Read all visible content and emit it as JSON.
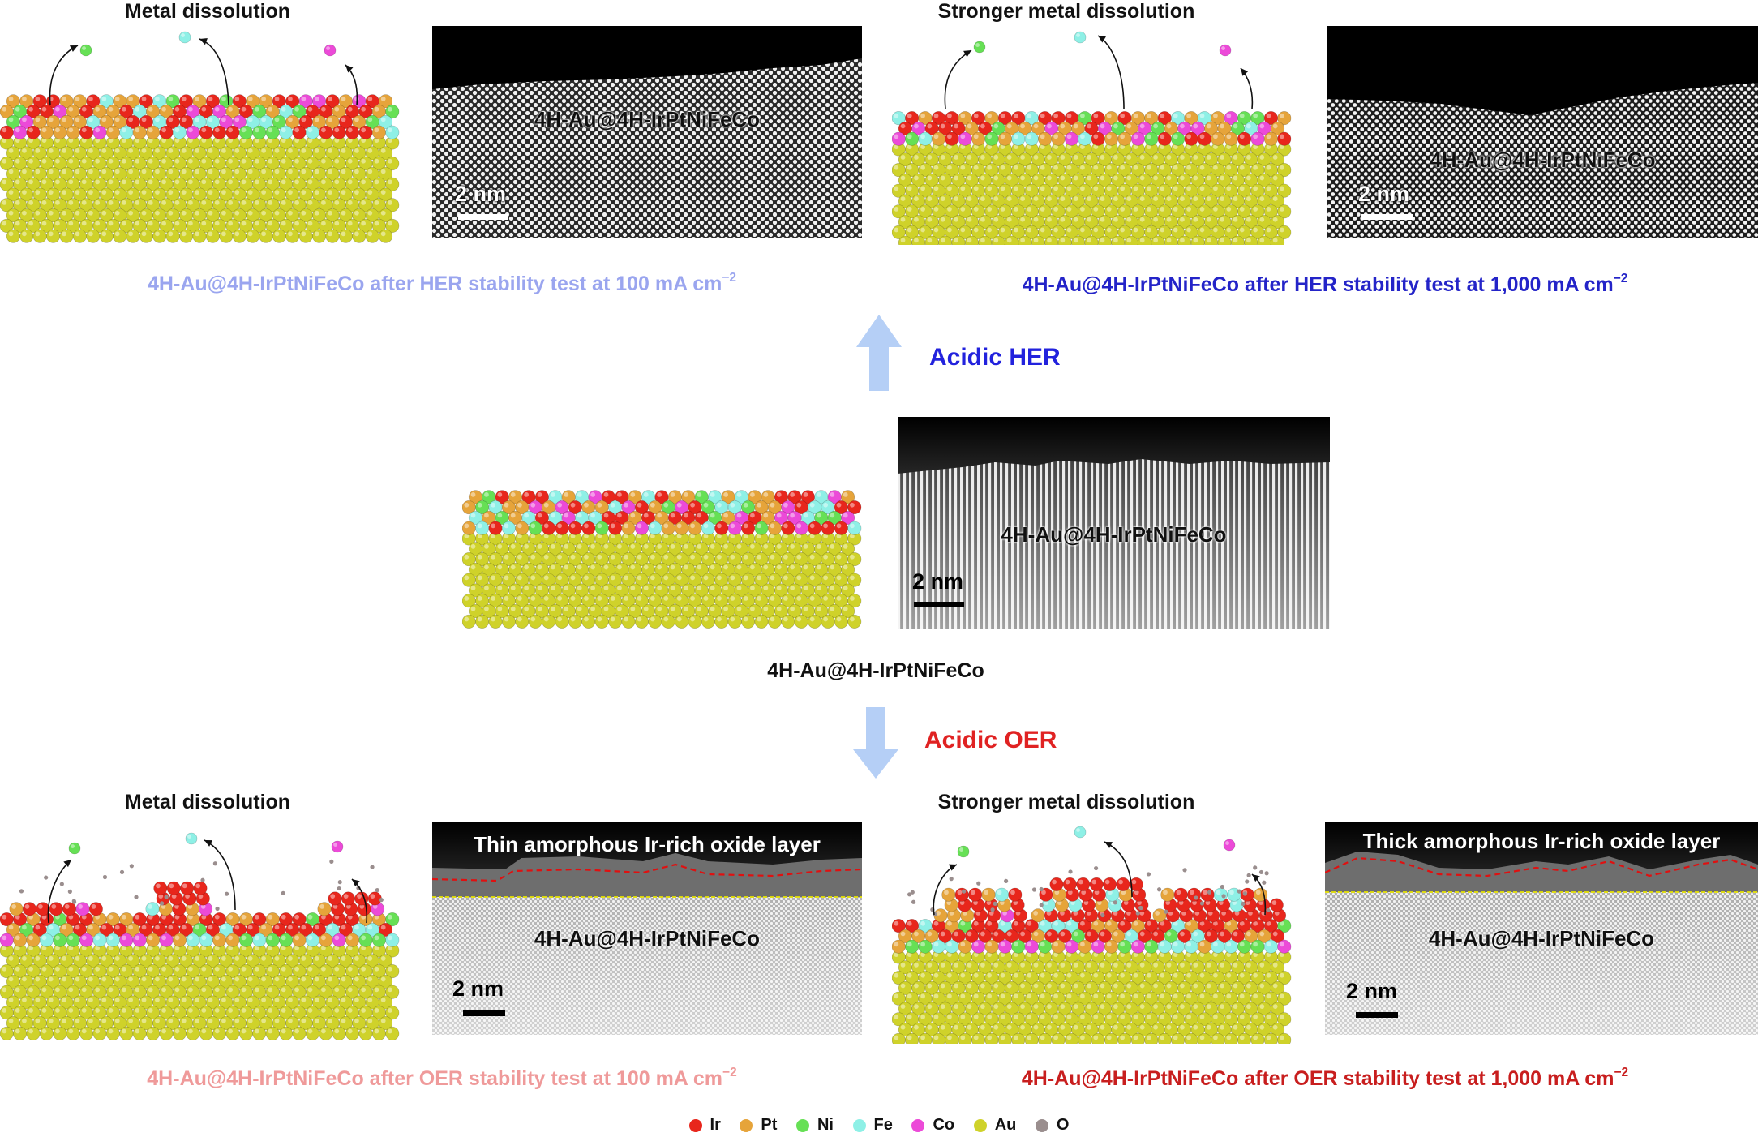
{
  "panels": {
    "her_100": {
      "heading": "Metal dissolution",
      "micro_label": "4H-Au@4H-IrPtNiFeCo",
      "scale": "2 nm",
      "caption": "4H-Au@4H-IrPtNiFeCo after HER stability test at 100 mA cm",
      "caption_sup": "−2",
      "caption_color": "#9aa5ef"
    },
    "her_1000": {
      "heading": "Stronger metal dissolution",
      "micro_label": "4H-Au@4H-IrPtNiFeCo",
      "scale": "2 nm",
      "caption": "4H-Au@4H-IrPtNiFeCo after HER stability test at 1,000 mA cm",
      "caption_sup": "−2",
      "caption_color": "#2424c8"
    },
    "pristine": {
      "micro_label": "4H-Au@4H-IrPtNiFeCo",
      "scale": "2 nm",
      "caption": "4H-Au@4H-IrPtNiFeCo"
    },
    "oer_100": {
      "heading": "Metal dissolution",
      "oxide_label": "Thin amorphous Ir-rich oxide layer",
      "micro_label": "4H-Au@4H-IrPtNiFeCo",
      "scale": "2 nm",
      "caption": "4H-Au@4H-IrPtNiFeCo after OER stability test at 100 mA cm",
      "caption_sup": "−2",
      "caption_color": "#ef9a9a"
    },
    "oer_1000": {
      "heading": "Stronger metal dissolution",
      "oxide_label": "Thick amorphous Ir-rich oxide layer",
      "micro_label": "4H-Au@4H-IrPtNiFeCo",
      "scale": "2 nm",
      "caption": "4H-Au@4H-IrPtNiFeCo after OER stability test at 1,000 mA cm",
      "caption_sup": "−2",
      "caption_color": "#c81e1e"
    }
  },
  "arrows": {
    "her": {
      "label": "Acidic HER",
      "color": "#2222dd"
    },
    "oer": {
      "label": "Acidic OER",
      "color": "#e02222"
    },
    "arrow_color": "#b5cff6"
  },
  "legend": [
    {
      "label": "Ir",
      "color": "#e8261c"
    },
    {
      "label": "Pt",
      "color": "#e6a43a"
    },
    {
      "label": "Ni",
      "color": "#66e055"
    },
    {
      "label": "Fe",
      "color": "#8ef0e6"
    },
    {
      "label": "Co",
      "color": "#ec4ad8"
    },
    {
      "label": "Au",
      "color": "#cfd22a"
    },
    {
      "label": "O",
      "color": "#9a8e8e"
    }
  ]
}
